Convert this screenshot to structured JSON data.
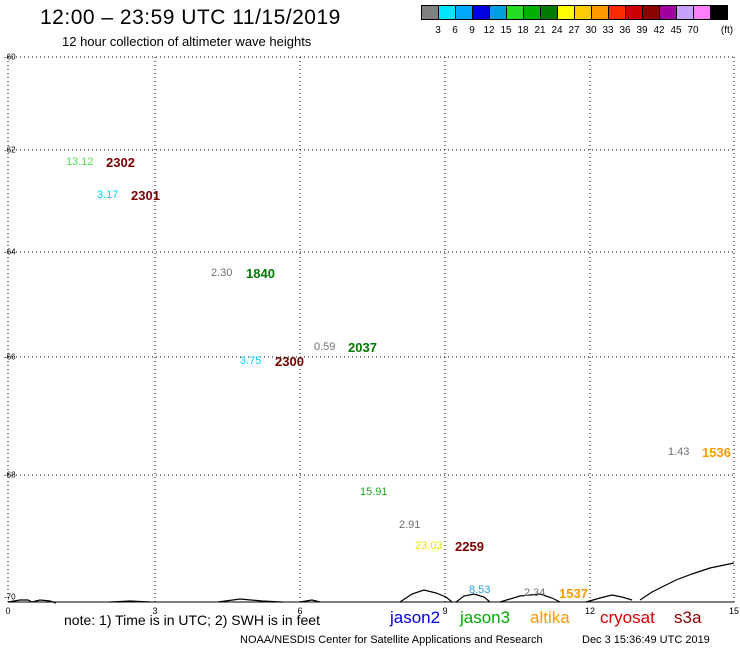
{
  "header": {
    "title": "12:00 – 23:59 UTC 11/15/2019",
    "subtitle": "12 hour collection of altimeter wave heights"
  },
  "legend": {
    "unit": "(ft)",
    "colors": [
      "#808080",
      "#00e5ff",
      "#00a8ff",
      "#0000e0",
      "#00a0e0",
      "#22dd22",
      "#00b000",
      "#007a00",
      "#ffff00",
      "#ffcc00",
      "#ff9900",
      "#ff2a00",
      "#cc0000",
      "#8b0000",
      "#a000a0",
      "#c8a0ff",
      "#ff80ff",
      "#000000"
    ],
    "labels": [
      "3",
      "6",
      "9",
      "12",
      "15",
      "18",
      "21",
      "24",
      "27",
      "30",
      "33",
      "36",
      "39",
      "42",
      "45",
      "70"
    ]
  },
  "axes": {
    "lat_labels": [
      "-60",
      "-62",
      "-64",
      "-66",
      "-68",
      "-70"
    ],
    "lon_labels": [
      "0",
      "3",
      "6",
      "9",
      "12",
      "15"
    ]
  },
  "observations": [
    {
      "swh": "13.12",
      "swh_color": "#55dd55",
      "time": "2302",
      "time_color": "#7a0000"
    },
    {
      "swh": "3.17",
      "swh_color": "#00d0ff",
      "time": "2301",
      "time_color": "#7a0000"
    },
    {
      "swh": "2.30",
      "swh_color": "#707070",
      "time": "1840",
      "time_color": "#007a00"
    },
    {
      "swh": "0.59",
      "swh_color": "#707070",
      "time": "2037",
      "time_color": "#007a00"
    },
    {
      "swh": "3.75",
      "swh_color": "#00d0ff",
      "time": "2300",
      "time_color": "#7a0000"
    },
    {
      "swh": "1.43",
      "swh_color": "#707070",
      "time": "1536",
      "time_color": "#ff9900"
    },
    {
      "swh": "15.91",
      "swh_color": "#22aa22",
      "time": "",
      "time_color": "#000000"
    },
    {
      "swh": "2.91",
      "swh_color": "#707070",
      "time": "",
      "time_color": "#000000"
    },
    {
      "swh": "23.03",
      "swh_color": "#e6e600",
      "time": "2259",
      "time_color": "#7a0000"
    },
    {
      "swh": "8.53",
      "swh_color": "#2aa0e0",
      "time": "",
      "time_color": "#000000"
    },
    {
      "swh": "2.34",
      "swh_color": "#707070",
      "time": "1537",
      "time_color": "#ff9900"
    }
  ],
  "note": "note: 1) Time is in UTC; 2) SWH is in feet",
  "satellites": [
    {
      "name": "jason2",
      "color": "#0000dd"
    },
    {
      "name": "jason3",
      "color": "#00aa00"
    },
    {
      "name": "altika",
      "color": "#ff9900"
    },
    {
      "name": "cryosat",
      "color": "#dd0000"
    },
    {
      "name": "s3a",
      "color": "#8b0000"
    }
  ],
  "footer": {
    "credit": "NOAA/NESDIS Center for Satellite Applications and Research",
    "generated": "Dec  3 15:36:49 UTC 2019"
  }
}
